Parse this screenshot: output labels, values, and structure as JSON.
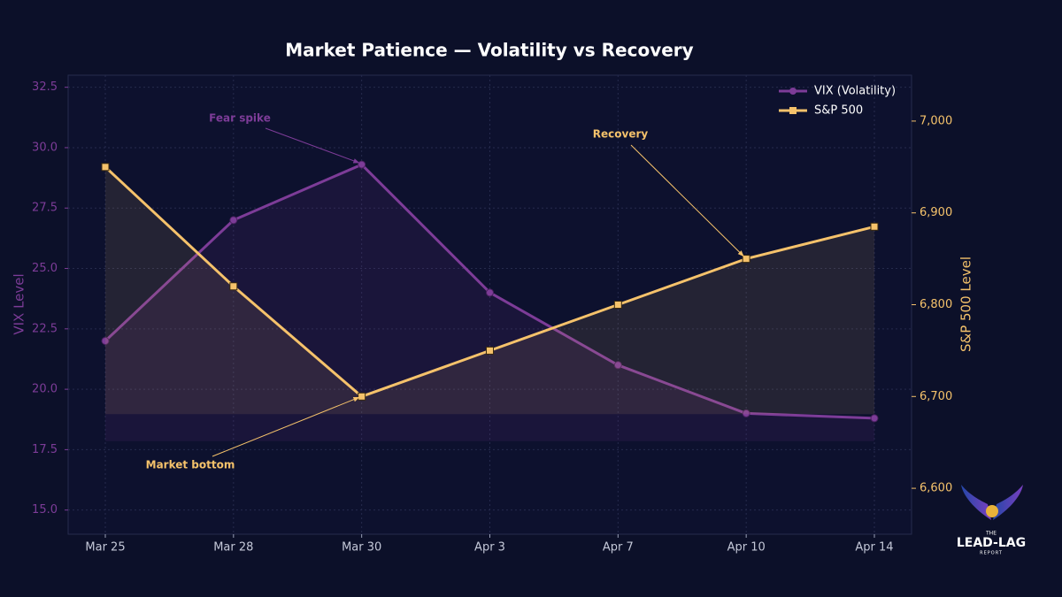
{
  "chart_data": {
    "type": "line",
    "title": "Market Patience — Volatility vs Recovery",
    "categories": [
      "Mar 25",
      "Mar 28",
      "Mar 30",
      "Apr 3",
      "Apr 7",
      "Apr 10",
      "Apr 14"
    ],
    "series": [
      {
        "name": "VIX (Volatility)",
        "color": "#7d3c98",
        "values": [
          22.0,
          27.0,
          29.3,
          24.0,
          21.0,
          19.0,
          18.8
        ]
      },
      {
        "name": "S&P 500",
        "color": "#f5c26b",
        "axis": "y2",
        "values": [
          6950,
          6820,
          6700,
          6750,
          6800,
          6850,
          6885
        ]
      }
    ],
    "ylabel": "VIX Level",
    "y2label": "S&P 500 Level",
    "ylim": [
      14,
      33
    ],
    "yticks": [
      {
        "value": 15,
        "label": "15.0"
      },
      17.5,
      {
        "value": 20,
        "label": "20.0"
      },
      22.5,
      {
        "value": 25,
        "label": "25.0"
      },
      27.5,
      {
        "value": 30,
        "label": "30.0"
      },
      32.5
    ],
    "y2lim": [
      6550,
      7050
    ],
    "y2ticks": [
      {
        "value": 6600,
        "label": "6,600"
      },
      {
        "value": 6700,
        "label": "6,700"
      },
      {
        "value": 6800,
        "label": "6,800"
      },
      {
        "value": 6900,
        "label": "6,900"
      },
      {
        "value": 7000,
        "label": "7,000"
      }
    ],
    "grid": true,
    "legend": "upper right",
    "annotations": [
      {
        "text": "Fear spike",
        "color": "#7d3c98"
      },
      {
        "text": "Recovery",
        "color": "#f5c26b"
      },
      {
        "text": "Market bottom",
        "color": "#f5c26b"
      }
    ]
  },
  "logo": {
    "top": "THE",
    "name": "LEAD-LAG",
    "bottom": "REPORT"
  }
}
